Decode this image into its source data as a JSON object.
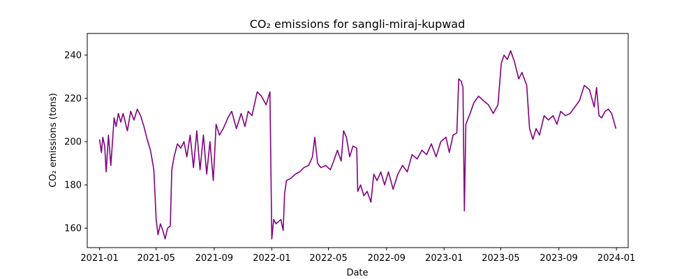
{
  "chart_data": {
    "type": "line",
    "title": "CO₂ emissions for sangli-miraj-kupwad",
    "xlabel": "Date",
    "ylabel": "CO₂ emissions (tons)",
    "xlim": [
      "2020-12-06",
      "2024-01-26"
    ],
    "ylim": [
      151,
      250
    ],
    "grid": false,
    "x_ticks": [
      "2021-01",
      "2021-05",
      "2021-09",
      "2022-01",
      "2022-05",
      "2022-09",
      "2023-01",
      "2023-05",
      "2023-09",
      "2024-01"
    ],
    "y_ticks": [
      160,
      180,
      200,
      220,
      240
    ],
    "series": [
      {
        "color": "#800080",
        "points": [
          [
            "2021-01-01",
            201
          ],
          [
            "2021-01-05",
            195
          ],
          [
            "2021-01-08",
            202
          ],
          [
            "2021-01-12",
            198
          ],
          [
            "2021-01-15",
            186
          ],
          [
            "2021-01-20",
            203
          ],
          [
            "2021-01-25",
            189
          ],
          [
            "2021-02-01",
            211
          ],
          [
            "2021-02-05",
            207
          ],
          [
            "2021-02-10",
            213
          ],
          [
            "2021-02-15",
            209
          ],
          [
            "2021-02-20",
            213
          ],
          [
            "2021-03-01",
            205
          ],
          [
            "2021-03-08",
            214
          ],
          [
            "2021-03-15",
            210
          ],
          [
            "2021-03-22",
            215
          ],
          [
            "2021-03-29",
            212
          ],
          [
            "2021-04-05",
            207
          ],
          [
            "2021-04-12",
            201
          ],
          [
            "2021-04-19",
            196
          ],
          [
            "2021-04-26",
            187
          ],
          [
            "2021-05-01",
            164
          ],
          [
            "2021-05-05",
            157
          ],
          [
            "2021-05-10",
            162
          ],
          [
            "2021-05-15",
            159
          ],
          [
            "2021-05-20",
            155
          ],
          [
            "2021-05-25",
            160
          ],
          [
            "2021-05-31",
            161
          ],
          [
            "2021-06-03",
            187
          ],
          [
            "2021-06-08",
            193
          ],
          [
            "2021-06-15",
            199
          ],
          [
            "2021-06-22",
            197
          ],
          [
            "2021-06-29",
            200
          ],
          [
            "2021-07-05",
            193
          ],
          [
            "2021-07-12",
            203
          ],
          [
            "2021-07-19",
            188
          ],
          [
            "2021-07-26",
            205
          ],
          [
            "2021-08-02",
            187
          ],
          [
            "2021-08-09",
            203
          ],
          [
            "2021-08-16",
            185
          ],
          [
            "2021-08-23",
            200
          ],
          [
            "2021-08-30",
            182
          ],
          [
            "2021-09-05",
            208
          ],
          [
            "2021-09-12",
            203
          ],
          [
            "2021-09-20",
            206
          ],
          [
            "2021-09-30",
            211
          ],
          [
            "2021-10-08",
            214
          ],
          [
            "2021-10-18",
            206
          ],
          [
            "2021-10-28",
            213
          ],
          [
            "2021-11-05",
            207
          ],
          [
            "2021-11-12",
            214
          ],
          [
            "2021-11-20",
            212
          ],
          [
            "2021-12-01",
            223
          ],
          [
            "2021-12-10",
            221
          ],
          [
            "2021-12-20",
            217
          ],
          [
            "2021-12-28",
            223
          ],
          [
            "2022-01-01",
            155
          ],
          [
            "2022-01-05",
            164
          ],
          [
            "2022-01-10",
            162
          ],
          [
            "2022-01-15",
            163
          ],
          [
            "2022-01-20",
            164
          ],
          [
            "2022-01-25",
            159
          ],
          [
            "2022-01-28",
            176
          ],
          [
            "2022-02-01",
            182
          ],
          [
            "2022-02-10",
            183
          ],
          [
            "2022-02-20",
            185
          ],
          [
            "2022-03-01",
            186
          ],
          [
            "2022-03-10",
            188
          ],
          [
            "2022-03-20",
            189
          ],
          [
            "2022-03-28",
            193
          ],
          [
            "2022-04-02",
            202
          ],
          [
            "2022-04-08",
            190
          ],
          [
            "2022-04-15",
            188
          ],
          [
            "2022-04-25",
            189
          ],
          [
            "2022-05-05",
            187
          ],
          [
            "2022-05-12",
            191
          ],
          [
            "2022-05-20",
            196
          ],
          [
            "2022-05-28",
            191
          ],
          [
            "2022-06-02",
            205
          ],
          [
            "2022-06-08",
            202
          ],
          [
            "2022-06-15",
            193
          ],
          [
            "2022-06-22",
            198
          ],
          [
            "2022-06-30",
            197
          ],
          [
            "2022-07-02",
            177
          ],
          [
            "2022-07-08",
            180
          ],
          [
            "2022-07-15",
            175
          ],
          [
            "2022-07-22",
            177
          ],
          [
            "2022-07-30",
            172
          ],
          [
            "2022-08-05",
            185
          ],
          [
            "2022-08-12",
            182
          ],
          [
            "2022-08-20",
            186
          ],
          [
            "2022-08-28",
            180
          ],
          [
            "2022-09-05",
            186
          ],
          [
            "2022-09-15",
            178
          ],
          [
            "2022-09-25",
            185
          ],
          [
            "2022-10-05",
            189
          ],
          [
            "2022-10-15",
            186
          ],
          [
            "2022-10-25",
            194
          ],
          [
            "2022-11-05",
            192
          ],
          [
            "2022-11-15",
            196
          ],
          [
            "2022-11-25",
            194
          ],
          [
            "2022-12-05",
            199
          ],
          [
            "2022-12-15",
            193
          ],
          [
            "2022-12-25",
            200
          ],
          [
            "2023-01-05",
            202
          ],
          [
            "2023-01-12",
            195
          ],
          [
            "2023-01-20",
            203
          ],
          [
            "2023-01-28",
            204
          ],
          [
            "2023-02-01",
            229
          ],
          [
            "2023-02-06",
            228
          ],
          [
            "2023-02-10",
            225
          ],
          [
            "2023-02-13",
            168
          ],
          [
            "2023-02-16",
            208
          ],
          [
            "2023-02-25",
            213
          ],
          [
            "2023-03-05",
            218
          ],
          [
            "2023-03-15",
            221
          ],
          [
            "2023-03-25",
            219
          ],
          [
            "2023-04-05",
            217
          ],
          [
            "2023-04-15",
            213
          ],
          [
            "2023-04-25",
            217
          ],
          [
            "2023-05-02",
            236
          ],
          [
            "2023-05-08",
            240
          ],
          [
            "2023-05-15",
            238
          ],
          [
            "2023-05-22",
            242
          ],
          [
            "2023-05-30",
            237
          ],
          [
            "2023-06-08",
            229
          ],
          [
            "2023-06-15",
            232
          ],
          [
            "2023-06-25",
            226
          ],
          [
            "2023-07-01",
            206
          ],
          [
            "2023-07-08",
            201
          ],
          [
            "2023-07-15",
            206
          ],
          [
            "2023-07-22",
            203
          ],
          [
            "2023-08-01",
            212
          ],
          [
            "2023-08-10",
            210
          ],
          [
            "2023-08-20",
            212
          ],
          [
            "2023-08-28",
            208
          ],
          [
            "2023-09-05",
            214
          ],
          [
            "2023-09-15",
            212
          ],
          [
            "2023-09-25",
            213
          ],
          [
            "2023-10-05",
            216
          ],
          [
            "2023-10-15",
            219
          ],
          [
            "2023-10-25",
            226
          ],
          [
            "2023-11-05",
            224
          ],
          [
            "2023-11-15",
            216
          ],
          [
            "2023-11-20",
            225
          ],
          [
            "2023-11-25",
            212
          ],
          [
            "2023-12-01",
            211
          ],
          [
            "2023-12-08",
            214
          ],
          [
            "2023-12-15",
            215
          ],
          [
            "2023-12-22",
            213
          ],
          [
            "2023-12-31",
            206
          ]
        ]
      }
    ]
  }
}
